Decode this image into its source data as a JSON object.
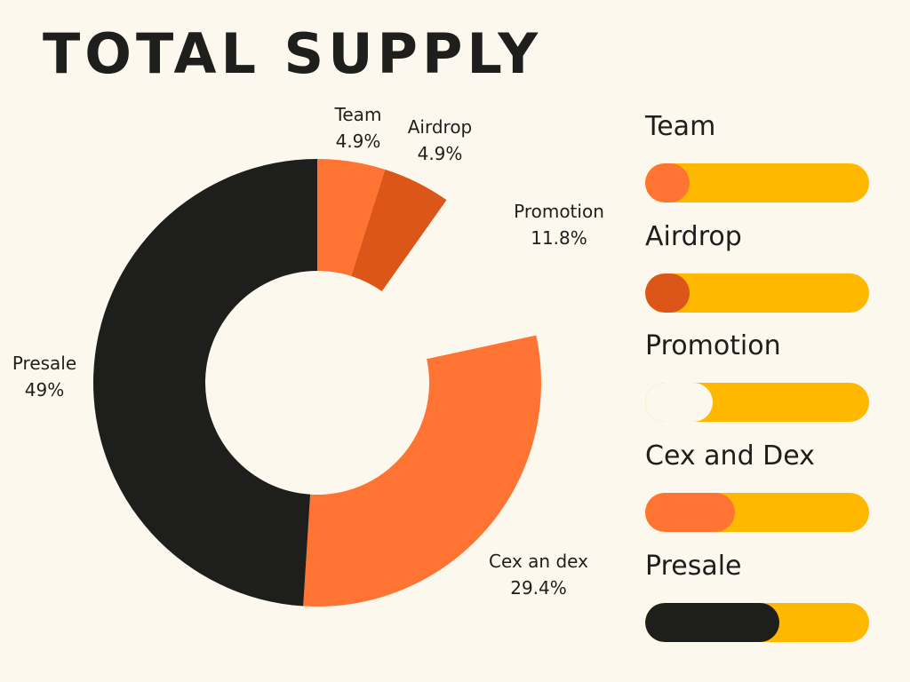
{
  "title": "TOTAL SUPPLY",
  "chart_data": {
    "type": "pie",
    "title": "TOTAL SUPPLY",
    "slices": [
      {
        "label": "Team",
        "percent_text": "4.9%",
        "value": 4.9,
        "color": "#ff7433"
      },
      {
        "label": "Airdrop",
        "percent_text": "4.9%",
        "value": 4.9,
        "color": "#dc5619"
      },
      {
        "label": "Promotion",
        "percent_text": "11.8%",
        "value": 11.8,
        "color": "#fcf8ee"
      },
      {
        "label": "Cex an dex",
        "percent_text": "29.4%",
        "value": 29.4,
        "color": "#ff7433"
      },
      {
        "label": "Presale",
        "percent_text": "49%",
        "value": 49,
        "color": "#1e1f1c"
      }
    ]
  },
  "legend": {
    "track_color": "#ffb800",
    "items": [
      {
        "name": "Team",
        "level": 0.2,
        "color": "#ff7433"
      },
      {
        "name": "Airdrop",
        "level": 0.2,
        "color": "#dc5619"
      },
      {
        "name": "Promotion",
        "level": 0.3,
        "color": "#fcf8ee"
      },
      {
        "name": "Cex and Dex",
        "level": 0.4,
        "color": "#ff7433"
      },
      {
        "name": "Presale",
        "level": 0.6,
        "color": "#1e1f1c"
      }
    ]
  }
}
